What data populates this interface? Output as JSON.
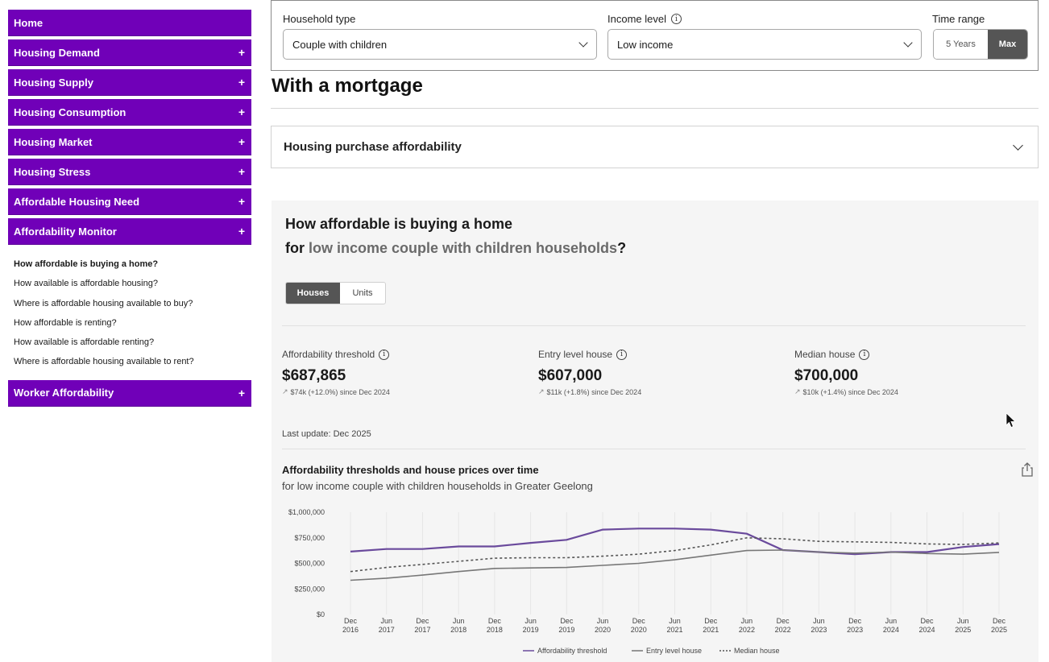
{
  "sidebar": {
    "items": [
      {
        "label": "Home",
        "expandable": false
      },
      {
        "label": "Housing Demand",
        "expandable": true
      },
      {
        "label": "Housing Supply",
        "expandable": true
      },
      {
        "label": "Housing Consumption",
        "expandable": true
      },
      {
        "label": "Housing Market",
        "expandable": true
      },
      {
        "label": "Housing Stress",
        "expandable": true
      },
      {
        "label": "Affordable Housing Need",
        "expandable": true
      },
      {
        "label": "Affordability Monitor",
        "expandable": true
      }
    ],
    "subitems": [
      "How affordable is buying a home?",
      "How available is affordable housing?",
      "Where is affordable housing available to buy?",
      "How affordable is renting?",
      "How available is affordable renting?",
      "Where is affordable housing available to rent?"
    ],
    "last_item": {
      "label": "Worker Affordability",
      "expandable": true
    },
    "plus": "+",
    "accent": "#7000b8"
  },
  "filters": {
    "household_type": {
      "label": "Household type",
      "value": "Couple with children"
    },
    "income_level": {
      "label": "Income level",
      "value": "Low income"
    },
    "time_range": {
      "label": "Time range",
      "options": [
        "5 Years",
        "Max"
      ],
      "selected": "Max"
    }
  },
  "section_title": "With a mortgage",
  "accordion": {
    "label": "Housing purchase affordability"
  },
  "panel": {
    "question_line1": "How affordable is buying a home",
    "question_prefix": "for",
    "question_highlight": "low income couple with children households",
    "question_suffix": "?",
    "tabs": [
      "Houses",
      "Units"
    ],
    "selected_tab": "Houses",
    "metrics": [
      {
        "label": "Affordability threshold",
        "value": "$687,865",
        "change": "$74k (+12.0%) since Dec 2024"
      },
      {
        "label": "Entry level house",
        "value": "$607,000",
        "change": "$11k (+1.8%) since Dec 2024"
      },
      {
        "label": "Median house",
        "value": "$700,000",
        "change": "$10k (+1.4%) since Dec 2024"
      }
    ],
    "last_update": "Last update: Dec 2025",
    "chart_title": "Affordability thresholds and house prices over time",
    "chart_subtitle": "for low income couple with children households in Greater Geelong"
  },
  "chart_data": {
    "type": "line",
    "title": "Affordability thresholds and house prices over time",
    "subtitle": "for low income couple with children households in Greater Geelong",
    "x": [
      "Dec 2016",
      "Jun 2017",
      "Dec 2017",
      "Jun 2018",
      "Dec 2018",
      "Jun 2019",
      "Dec 2019",
      "Jun 2020",
      "Dec 2020",
      "Jun 2021",
      "Dec 2021",
      "Jun 2022",
      "Dec 2022",
      "Jun 2023",
      "Dec 2023",
      "Jun 2024",
      "Dec 2024",
      "Jun 2025",
      "Dec 2025"
    ],
    "series": [
      {
        "name": "Affordability threshold",
        "style": "solid",
        "color": "#6a4a9c",
        "values": [
          615000,
          640000,
          640000,
          665000,
          665000,
          700000,
          730000,
          830000,
          840000,
          840000,
          830000,
          790000,
          630000,
          610000,
          590000,
          610000,
          610000,
          660000,
          687865
        ]
      },
      {
        "name": "Entry level house",
        "style": "solid",
        "color": "#777777",
        "values": [
          335000,
          355000,
          385000,
          420000,
          450000,
          455000,
          460000,
          480000,
          500000,
          535000,
          580000,
          625000,
          630000,
          610000,
          600000,
          610000,
          596000,
          590000,
          607000
        ]
      },
      {
        "name": "Median house",
        "style": "dashed",
        "color": "#555555",
        "values": [
          420000,
          460000,
          490000,
          520000,
          550000,
          555000,
          555000,
          570000,
          590000,
          625000,
          680000,
          750000,
          740000,
          715000,
          710000,
          705000,
          690000,
          685000,
          700000
        ]
      }
    ],
    "yticks": [
      "$1,000,000",
      "$750,000",
      "$500,000",
      "$250,000",
      "$0"
    ],
    "ylim": [
      0,
      1000000
    ],
    "grid": "vertical",
    "legend": "bottom-center"
  }
}
